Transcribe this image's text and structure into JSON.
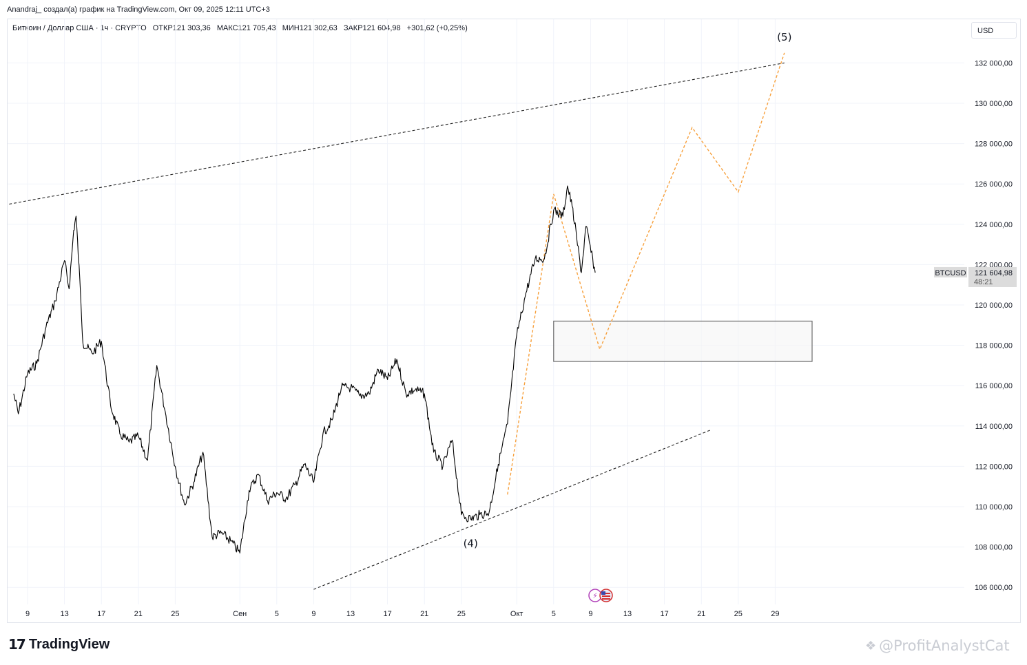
{
  "header": {
    "credit": "Anandraj_ создал(а) график на TradingView.com, Окт 09, 2025 12:11 UTC+3"
  },
  "symbol_info": {
    "name": "Биткоин / Доллар США · 1ч · CRYPTO",
    "open": "ОТКР121 303,36",
    "high": "МАКС121 705,43",
    "low": "МИН121 302,63",
    "close": "ЗАКР121 604,98",
    "change": "+301,62 (+0,25%)"
  },
  "currency": "USD",
  "price_tag": {
    "ticker": "BTCUSD",
    "price": "121 604,98",
    "countdown": "48:21",
    "bg_color": "#dcdcdc"
  },
  "footer": {
    "logo_text": "TradingView",
    "watermark": "@ProfitAnalystCat"
  },
  "colors": {
    "price_line": "#000000",
    "projection": "#f7a03c",
    "trendline": "#222222",
    "grid": "#f0f3fa",
    "box_border": "#6b6b6b"
  },
  "chart_data": {
    "type": "line",
    "title": "",
    "series": [
      {
        "name": "BTCUSD",
        "points": [
          [
            "Авг 07 12:00",
            115600
          ],
          [
            "Авг 08",
            114600
          ],
          [
            "Авг 09",
            116600
          ],
          [
            "Авг 10",
            117100
          ],
          [
            "Авг 11",
            118900
          ],
          [
            "Авг 12",
            120200
          ],
          [
            "Авг 13",
            122200
          ],
          [
            "Авг 13 12:00",
            120800
          ],
          [
            "Авг 14",
            123700
          ],
          [
            "Авг 14 06:00",
            124400
          ],
          [
            "Авг 14 18:00",
            120500
          ],
          [
            "Авг 15",
            118100
          ],
          [
            "Авг 16",
            117600
          ],
          [
            "Авг 17",
            118200
          ],
          [
            "Авг 18",
            115000
          ],
          [
            "Авг 19",
            113600
          ],
          [
            "Авг 20",
            113200
          ],
          [
            "Авг 21",
            113500
          ],
          [
            "Авг 22",
            112300
          ],
          [
            "Авг 23",
            117000
          ],
          [
            "Авг 24",
            114500
          ],
          [
            "Авг 25",
            112000
          ],
          [
            "Авг 26",
            110100
          ],
          [
            "Авг 27",
            111200
          ],
          [
            "Авг 28",
            112700
          ],
          [
            "Авг 29",
            108500
          ],
          [
            "Авг 30",
            108700
          ],
          [
            "Авг 31",
            108300
          ],
          [
            "Сен 01",
            107700
          ],
          [
            "Сен 02",
            110800
          ],
          [
            "Сен 03",
            111600
          ],
          [
            "Сен 04",
            110300
          ],
          [
            "Сен 05",
            110700
          ],
          [
            "Сен 06",
            110400
          ],
          [
            "Сен 07",
            111100
          ],
          [
            "Сен 08",
            112100
          ],
          [
            "Сен 09",
            111200
          ],
          [
            "Сен 10",
            113600
          ],
          [
            "Сен 11",
            114300
          ],
          [
            "Сен 12",
            115900
          ],
          [
            "Сен 13",
            115900
          ],
          [
            "Сен 14",
            115500
          ],
          [
            "Сен 15",
            115600
          ],
          [
            "Сен 16",
            116800
          ],
          [
            "Сен 17",
            116300
          ],
          [
            "Сен 18",
            117300
          ],
          [
            "Сен 19",
            115600
          ],
          [
            "Сен 20",
            115800
          ],
          [
            "Сен 21",
            115600
          ],
          [
            "Сен 22",
            112700
          ],
          [
            "Сен 23",
            112000
          ],
          [
            "Сен 24",
            113300
          ],
          [
            "Сен 25",
            109600
          ],
          [
            "Сен 26",
            109400
          ],
          [
            "Сен 27",
            109600
          ],
          [
            "Сен 28",
            109700
          ],
          [
            "Сен 29",
            112100
          ],
          [
            "Сен 30",
            114100
          ],
          [
            "Окт 01",
            118500
          ],
          [
            "Окт 02",
            120600
          ],
          [
            "Окт 03",
            122300
          ],
          [
            "Окт 04",
            122300
          ],
          [
            "Окт 05",
            124700
          ],
          [
            "Окт 06",
            124400
          ],
          [
            "Окт 06 12:00",
            125900
          ],
          [
            "Окт 07",
            124900
          ],
          [
            "Окт 07 12:00",
            123300
          ],
          [
            "Окт 08",
            121600
          ],
          [
            "Окт 08 12:00",
            123900
          ],
          [
            "Окт 09 12:00",
            121605
          ]
        ]
      },
      {
        "name": "",
        "style": "dashed",
        "points": [
          [
            "Сен 30",
            110600
          ],
          [
            "Окт 05",
            125500
          ],
          [
            "Окт 10",
            117800
          ],
          [
            "Окт 20",
            128800
          ],
          [
            "Окт 25",
            125600
          ],
          [
            "Окт 30",
            132500
          ]
        ]
      }
    ],
    "trendlines": [
      {
        "from": [
          "Авг 07",
          125000
        ],
        "to": [
          "Окт 30",
          132000
        ]
      },
      {
        "from": [
          "Сен 09",
          105900
        ],
        "to": [
          "Окт 22",
          113800
        ]
      }
    ],
    "zones": [
      {
        "from": "Окт 05",
        "to": "Ноя 02",
        "y_low": 117200,
        "y_high": 119200
      }
    ],
    "annotations": [
      {
        "label": "(4)",
        "x": "Сен 26",
        "y": 108000
      },
      {
        "label": "(5)",
        "x": "Окт 30",
        "y": 133100
      }
    ],
    "x_ticks": [
      "9",
      "13",
      "17",
      "21",
      "25",
      "Сен",
      "5",
      "9",
      "13",
      "17",
      "21",
      "25",
      "Окт",
      "5",
      "9",
      "13",
      "17",
      "21",
      "25",
      "29"
    ],
    "y_ticks": [
      "106 000,00",
      "108 000,00",
      "110 000,00",
      "112 000,00",
      "114 000,00",
      "116 000,00",
      "118 000,00",
      "120 000,00",
      "122 000,00",
      "124 000,00",
      "126 000,00",
      "128 000,00",
      "130 000,00",
      "132 000,00"
    ],
    "ylim": [
      105000,
      133500
    ],
    "grid": true,
    "legend": "none"
  }
}
